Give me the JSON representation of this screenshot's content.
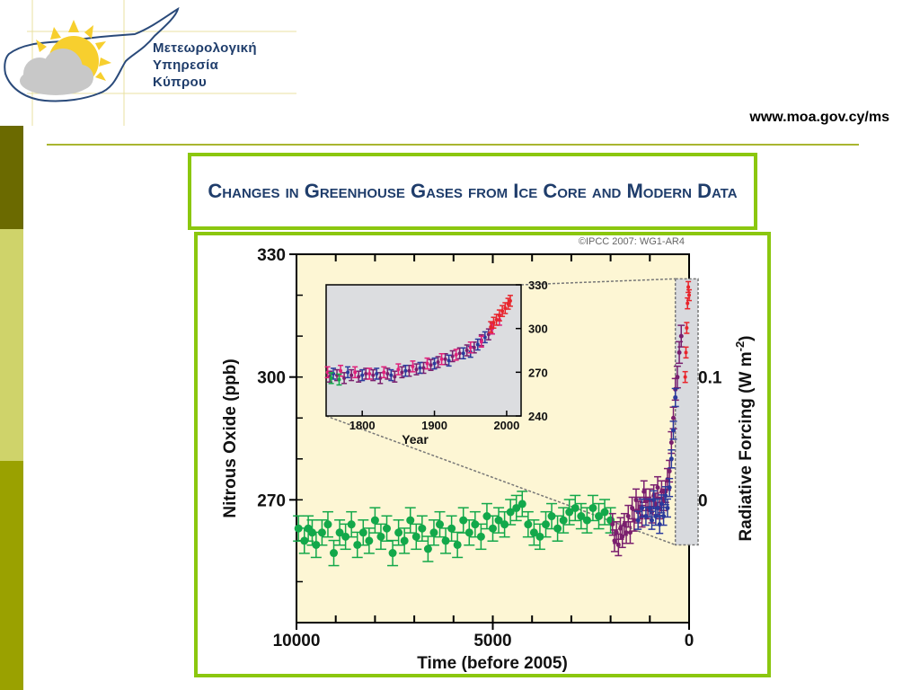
{
  "header": {
    "org_name_lines": [
      "Μετεωρολογική",
      "Υπηρεσία",
      "Κύπρου"
    ],
    "url": "www.moa.gov.cy/ms"
  },
  "slide": {
    "title": "Changes in Greenhouse Gases from Ice Core and Modern Data"
  },
  "colors": {
    "accent_green": "#8bc70f",
    "title_blue": "#1f3d6b",
    "plot_bg": "#fdf6d4",
    "inset_bg": "#dcdde0",
    "ice_core_series": "#13a84a",
    "series_purple": "#7a1f6e",
    "series_blue": "#2b3a9c",
    "series_magenta": "#e0207a",
    "modern_series": "#e8242b"
  },
  "chart_data": [
    {
      "type": "scatter",
      "copyright": "©IPCC 2007: WG1-AR4",
      "xlabel": "Time (before 2005)",
      "ylabel": "Nitrous Oxide (ppb)",
      "y2label": "Radiative Forcing (W m",
      "y2label_superscript": "-2",
      "y2label_close": ")",
      "x_ticks": [
        "10000",
        "5000",
        "0"
      ],
      "y_ticks": [
        "330",
        "300",
        "270"
      ],
      "y2_ticks": [
        "0.1",
        "0"
      ],
      "xlim": [
        10000,
        0
      ],
      "ylim": [
        240,
        330
      ],
      "y2_tick_positions_ppb": [
        300,
        270
      ],
      "ice_core_points": [
        [
          9950,
          263
        ],
        [
          9800,
          260
        ],
        [
          9700,
          263
        ],
        [
          9600,
          262
        ],
        [
          9500,
          259
        ],
        [
          9350,
          262
        ],
        [
          9200,
          264
        ],
        [
          9050,
          257
        ],
        [
          8900,
          262
        ],
        [
          8750,
          261
        ],
        [
          8600,
          264
        ],
        [
          8450,
          259
        ],
        [
          8300,
          262
        ],
        [
          8150,
          260
        ],
        [
          8000,
          265
        ],
        [
          7850,
          261
        ],
        [
          7700,
          263
        ],
        [
          7550,
          257
        ],
        [
          7400,
          262
        ],
        [
          7250,
          260
        ],
        [
          7100,
          265
        ],
        [
          6950,
          261
        ],
        [
          6800,
          263
        ],
        [
          6650,
          258
        ],
        [
          6500,
          262
        ],
        [
          6350,
          264
        ],
        [
          6200,
          260
        ],
        [
          6050,
          263
        ],
        [
          5900,
          259
        ],
        [
          5750,
          265
        ],
        [
          5600,
          262
        ],
        [
          5450,
          264
        ],
        [
          5300,
          261
        ],
        [
          5150,
          266
        ],
        [
          5000,
          263
        ],
        [
          4850,
          265
        ],
        [
          4700,
          264
        ],
        [
          4550,
          267
        ],
        [
          4400,
          268
        ],
        [
          4250,
          269
        ],
        [
          4100,
          264
        ],
        [
          3950,
          262
        ],
        [
          3800,
          261
        ],
        [
          3650,
          264
        ],
        [
          3500,
          266
        ],
        [
          3350,
          263
        ],
        [
          3200,
          265
        ],
        [
          3050,
          267
        ],
        [
          2900,
          268
        ],
        [
          2750,
          266
        ],
        [
          2600,
          265
        ],
        [
          2450,
          268
        ],
        [
          2300,
          266
        ],
        [
          2150,
          267
        ],
        [
          2000,
          265
        ]
      ],
      "modern_segment": {
        "purple": [
          [
            1950,
            264
          ],
          [
            1900,
            260
          ],
          [
            1850,
            262
          ],
          [
            1800,
            259
          ],
          [
            1750,
            263
          ],
          [
            1700,
            261
          ],
          [
            1650,
            264
          ],
          [
            1600,
            262
          ],
          [
            1550,
            266
          ],
          [
            1500,
            262
          ],
          [
            1450,
            268
          ],
          [
            1400,
            265
          ],
          [
            1350,
            270
          ],
          [
            1300,
            267
          ],
          [
            1250,
            268
          ],
          [
            1200,
            266
          ],
          [
            1150,
            272
          ],
          [
            1100,
            270
          ],
          [
            1050,
            268
          ],
          [
            1000,
            270
          ],
          [
            950,
            267
          ],
          [
            900,
            271
          ],
          [
            850,
            269
          ],
          [
            800,
            273
          ],
          [
            750,
            268
          ],
          [
            700,
            272
          ],
          [
            650,
            270
          ],
          [
            600,
            272
          ],
          [
            550,
            275
          ],
          [
            500,
            277
          ],
          [
            450,
            284
          ],
          [
            400,
            290
          ],
          [
            350,
            297
          ],
          [
            300,
            300
          ],
          [
            250,
            306
          ],
          [
            200,
            310
          ]
        ],
        "blue": [
          [
            1300,
            265
          ],
          [
            1200,
            268
          ],
          [
            1100,
            266
          ],
          [
            1000,
            268
          ],
          [
            950,
            265
          ],
          [
            900,
            270
          ],
          [
            850,
            266
          ],
          [
            800,
            268
          ],
          [
            750,
            264
          ],
          [
            700,
            269
          ],
          [
            650,
            266
          ],
          [
            600,
            271
          ],
          [
            550,
            268
          ],
          [
            500,
            273
          ],
          [
            450,
            280
          ],
          [
            400,
            287
          ],
          [
            350,
            295
          ]
        ],
        "red": [
          [
            100,
            300
          ],
          [
            80,
            306
          ],
          [
            60,
            312
          ],
          [
            40,
            318
          ],
          [
            20,
            322
          ],
          [
            0,
            320
          ]
        ]
      },
      "zoom_box_range": {
        "x": [
          350,
          0
        ],
        "y": [
          259,
          324
        ]
      }
    },
    {
      "type": "scatter",
      "title": "",
      "xlabel": "Year",
      "x_ticks": [
        "1800",
        "1900",
        "2000"
      ],
      "y_ticks": [
        "330",
        "300",
        "270",
        "240"
      ],
      "xlim": [
        1750,
        2020
      ],
      "ylim": [
        240,
        330
      ],
      "series": [
        {
          "name": "",
          "color_key": "series_purple",
          "points": [
            [
              1755,
              267
            ],
            [
              1765,
              268
            ],
            [
              1775,
              266
            ],
            [
              1785,
              268
            ],
            [
              1795,
              267
            ],
            [
              1805,
              269
            ],
            [
              1815,
              268
            ],
            [
              1825,
              266
            ],
            [
              1835,
              269
            ],
            [
              1845,
              267
            ],
            [
              1855,
              270
            ],
            [
              1865,
              271
            ],
            [
              1875,
              272
            ],
            [
              1885,
              273
            ],
            [
              1895,
              275
            ],
            [
              1905,
              277
            ],
            [
              1915,
              279
            ],
            [
              1925,
              281
            ],
            [
              1935,
              283
            ],
            [
              1945,
              285
            ],
            [
              1955,
              287
            ],
            [
              1965,
              292
            ],
            [
              1975,
              296
            ]
          ]
        },
        {
          "name": "",
          "color_key": "series_blue",
          "points": [
            [
              1760,
              269
            ],
            [
              1780,
              270
            ],
            [
              1800,
              268
            ],
            [
              1820,
              269
            ],
            [
              1840,
              268
            ],
            [
              1860,
              271
            ],
            [
              1880,
              273
            ],
            [
              1900,
              276
            ],
            [
              1920,
              278
            ],
            [
              1940,
              283
            ],
            [
              1950,
              284
            ],
            [
              1960,
              289
            ],
            [
              1970,
              294
            ],
            [
              1980,
              300
            ]
          ]
        },
        {
          "name": "",
          "color_key": "series_magenta",
          "points": [
            [
              1752,
              270
            ],
            [
              1770,
              271
            ],
            [
              1790,
              270
            ],
            [
              1810,
              269
            ],
            [
              1830,
              270
            ],
            [
              1850,
              272
            ],
            [
              1870,
              274
            ],
            [
              1890,
              276
            ],
            [
              1910,
              279
            ],
            [
              1930,
              282
            ],
            [
              1950,
              287
            ],
            [
              1965,
              291
            ],
            [
              1980,
              300
            ],
            [
              1990,
              306
            ]
          ]
        },
        {
          "name": "",
          "color_key": "modern_series",
          "points": [
            [
              1978,
              301
            ],
            [
              1982,
              304
            ],
            [
              1986,
              306
            ],
            [
              1990,
              309
            ],
            [
              1994,
              312
            ],
            [
              1998,
              314
            ],
            [
              2002,
              317
            ],
            [
              2005,
              319
            ]
          ]
        },
        {
          "name": "",
          "color_key": "ice_core_series",
          "points": [
            [
              1757,
              266
            ],
            [
              1768,
              265
            ]
          ]
        }
      ]
    }
  ]
}
